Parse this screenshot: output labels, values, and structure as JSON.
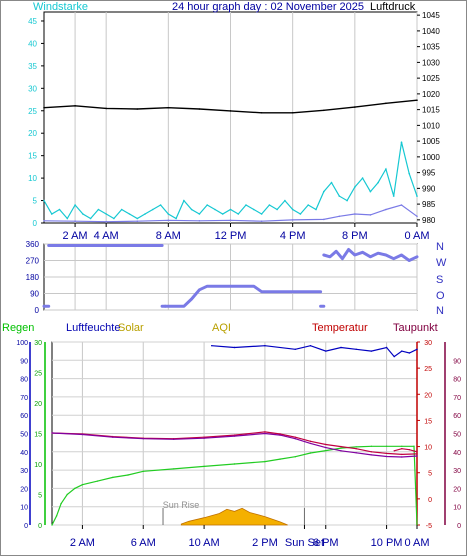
{
  "chart_data": [
    {
      "type": "line",
      "title": "24 hour graph day : 02 November 2025",
      "left_axis_label": "Windstarke",
      "right_axis_label": "Luftdruck",
      "x_ticks": [
        "2 AM",
        "4 AM",
        "8 AM",
        "12 PM",
        "4 PM",
        "8 PM",
        "0 AM"
      ],
      "x_tick_hours": [
        2,
        4,
        8,
        12,
        16,
        20,
        24
      ],
      "y_left_ticks": [
        "0",
        "5",
        "10",
        "15",
        "20",
        "25",
        "30",
        "35",
        "40",
        "45"
      ],
      "ylim_left": [
        0,
        47
      ],
      "y_right_ticks": [
        "980",
        "985",
        "990",
        "995",
        "1000",
        "1005",
        "1010",
        "1015",
        "1020",
        "1025",
        "1030",
        "1035",
        "1040",
        "1045"
      ],
      "ylim_right": [
        979,
        1046
      ],
      "colors": {
        "pressure": "#000000",
        "gust": "#16c8d2",
        "wind": "#7a7ae6"
      },
      "series": [
        {
          "key": "pressure",
          "axis": "right",
          "x": [
            0,
            2,
            4,
            6,
            8,
            10,
            12,
            14,
            16,
            18,
            20,
            22,
            24
          ],
          "y": [
            1015.6,
            1016.2,
            1015.4,
            1015.2,
            1015.6,
            1015.2,
            1014.6,
            1014.0,
            1014.0,
            1014.8,
            1015.8,
            1017.0,
            1018.0
          ]
        },
        {
          "key": "gust",
          "axis": "left",
          "x": [
            0.0,
            0.5,
            1.0,
            1.5,
            2.0,
            2.5,
            3.0,
            3.5,
            4.0,
            4.5,
            5.0,
            5.5,
            6.0,
            6.5,
            7.0,
            7.5,
            8.0,
            8.5,
            9.0,
            9.5,
            10.0,
            10.5,
            11.0,
            11.5,
            12.0,
            12.5,
            13.0,
            13.5,
            14.0,
            14.5,
            15.0,
            15.5,
            16.0,
            16.5,
            17.0,
            17.5,
            18.0,
            18.5,
            19.0,
            19.5,
            20.0,
            20.5,
            21.0,
            21.5,
            22.0,
            22.5,
            23.0,
            23.5,
            24.0
          ],
          "y": [
            5,
            2,
            3,
            1,
            4,
            2,
            1,
            3,
            2,
            1,
            3,
            2,
            1,
            2,
            3,
            4,
            2,
            1,
            5,
            3,
            2,
            4,
            3,
            2,
            3,
            2,
            4,
            3,
            2,
            4,
            3,
            5,
            3,
            2,
            4,
            3,
            7,
            9,
            6,
            5,
            8,
            10,
            7,
            9,
            12,
            6,
            18,
            11,
            6
          ]
        },
        {
          "key": "wind",
          "axis": "left",
          "x": [
            0,
            2,
            4,
            6,
            8,
            10,
            12,
            14,
            16,
            18,
            19,
            20,
            21,
            22,
            23,
            24
          ],
          "y": [
            0.5,
            0.4,
            0.3,
            0.4,
            0.6,
            0.5,
            0.6,
            0.4,
            0.7,
            0.8,
            1.5,
            2,
            1.8,
            3,
            4,
            1.5
          ]
        }
      ]
    },
    {
      "type": "line",
      "y_left_ticks": [
        "0",
        "90",
        "180",
        "270",
        "360"
      ],
      "y_right_labels": [
        "N",
        "O",
        "S",
        "W",
        "N"
      ],
      "ylim": [
        0,
        360
      ],
      "colors": {
        "direction": "#7a7ae6"
      },
      "series": [
        {
          "key": "direction",
          "segments": [
            {
              "x": [
                0.0,
                0.3
              ],
              "y": [
                20,
                20
              ]
            },
            {
              "x": [
                0.3,
                7.6
              ],
              "y": [
                352,
                352
              ]
            },
            {
              "x": [
                7.6,
                7.8
              ],
              "y": [
                20,
                20
              ]
            },
            {
              "x": [
                7.8,
                9.0,
                9.5,
                10.0,
                10.5,
                13.5,
                14.0,
                17.8
              ],
              "y": [
                20,
                20,
                60,
                110,
                130,
                130,
                100,
                100
              ]
            },
            {
              "x": [
                17.8,
                18.0
              ],
              "y": [
                20,
                20
              ]
            },
            {
              "x": [
                18.0,
                18.4,
                18.8,
                19.2,
                19.6,
                20.0,
                20.5,
                21.0,
                21.5,
                22.0,
                22.5,
                23.0,
                23.5,
                24.0
              ],
              "y": [
                300,
                290,
                320,
                280,
                330,
                300,
                315,
                290,
                310,
                300,
                280,
                300,
                270,
                290
              ]
            }
          ]
        }
      ]
    },
    {
      "type": "line",
      "header_labels": [
        "Regen",
        "Luftfeuchte",
        "Solar",
        "AQI",
        "Temperatur",
        "Taupunkt"
      ],
      "header_colors": [
        "#00c000",
        "#0000b0",
        "#b8a000",
        "#b8a000",
        "#c00000",
        "#800040"
      ],
      "x_ticks": [
        "2 AM",
        "6 AM",
        "10 AM",
        "2 PM",
        "Sun Set",
        "6 PM",
        "10 PM",
        "0 AM"
      ],
      "x_tick_hours": [
        2,
        6,
        10,
        14,
        16.6,
        18,
        22,
        24
      ],
      "y_rain_ticks": [
        "0",
        "5",
        "10",
        "15",
        "20",
        "25",
        "30"
      ],
      "ylim_rain": [
        0,
        30
      ],
      "y_hum_ticks": [
        "0",
        "10",
        "20",
        "30",
        "40",
        "50",
        "60",
        "70",
        "80",
        "90",
        "100"
      ],
      "ylim_hum": [
        0,
        100
      ],
      "y_temp_ticks": [
        "-5",
        "0",
        "5",
        "10",
        "15",
        "20",
        "25",
        "30"
      ],
      "ylim_temp": [
        -5,
        30
      ],
      "y_dew_ticks": [
        "0",
        "10",
        "20",
        "30",
        "40",
        "50",
        "60",
        "70",
        "80",
        "90"
      ],
      "annotations": [
        {
          "label": "Sun Rise",
          "hour": 7.3
        },
        {
          "label": "Sun Set",
          "hour": 16.6
        }
      ],
      "colors": {
        "rain": "#22cc22",
        "humidity": "#0000c0",
        "temperature": "#c00040",
        "dewpoint": "#8000a0",
        "solar_fill": "#f4b000",
        "solar_edge": "#c07000"
      },
      "series": [
        {
          "key": "rain",
          "axis": "rain",
          "x": [
            0,
            0.3,
            0.6,
            1,
            1.5,
            2,
            3,
            4,
            5,
            6,
            8,
            10,
            12,
            14,
            15,
            16,
            17,
            18,
            19,
            20,
            21,
            22,
            23,
            23.8,
            24
          ],
          "y": [
            0,
            1.5,
            3.5,
            5.0,
            6.0,
            6.6,
            7.2,
            7.8,
            8.2,
            8.8,
            9.2,
            9.6,
            10.0,
            10.4,
            10.8,
            11.2,
            11.8,
            12.2,
            12.6,
            12.8,
            12.9,
            12.9,
            12.9,
            12.9,
            0
          ]
        },
        {
          "key": "humidity",
          "axis": "hum",
          "x": [
            10.5,
            12,
            14,
            16,
            17,
            18,
            19,
            20,
            21,
            22,
            22.5,
            23,
            23.5,
            24
          ],
          "y": [
            98,
            97,
            98,
            96,
            98,
            95,
            97,
            96,
            95,
            97,
            92,
            95,
            94,
            96
          ]
        },
        {
          "key": "temperature",
          "axis": "temp",
          "x": [
            0,
            2,
            4,
            6,
            8,
            10,
            12,
            14,
            15,
            16,
            17,
            18,
            19,
            20,
            21,
            22,
            23,
            24
          ],
          "y": [
            12.6,
            12.4,
            11.9,
            11.6,
            11.5,
            11.8,
            12.2,
            12.8,
            12.4,
            11.8,
            11.0,
            10.4,
            10.0,
            9.6,
            9.0,
            8.7,
            8.5,
            8.6
          ]
        },
        {
          "key": "dewpoint",
          "axis": "temp",
          "x": [
            0,
            2,
            4,
            6,
            8,
            10,
            12,
            14,
            15,
            16,
            17,
            18,
            19,
            20,
            21,
            22,
            23,
            24
          ],
          "y": [
            12.6,
            12.3,
            11.8,
            11.5,
            11.4,
            11.6,
            12.0,
            12.5,
            12.2,
            11.5,
            10.6,
            9.8,
            9.2,
            8.8,
            8.4,
            8.1,
            8.0,
            8.2
          ]
        },
        {
          "key": "solar",
          "axis": "temp",
          "fill": true,
          "x": [
            8.5,
            9,
            10,
            11,
            11.5,
            12,
            12.5,
            13,
            13.5,
            14,
            14.5,
            15,
            15.5
          ],
          "y": [
            -4.8,
            -4.3,
            -3.6,
            -2.8,
            -2.0,
            -2.4,
            -1.8,
            -2.6,
            -3.0,
            -3.4,
            -3.9,
            -4.4,
            -5.0
          ]
        },
        {
          "key": "temp_extra",
          "axis": "temp",
          "x": [
            22.5,
            23,
            23.5,
            24
          ],
          "y": [
            9.2,
            9.6,
            9.4,
            9.0
          ]
        }
      ]
    }
  ]
}
